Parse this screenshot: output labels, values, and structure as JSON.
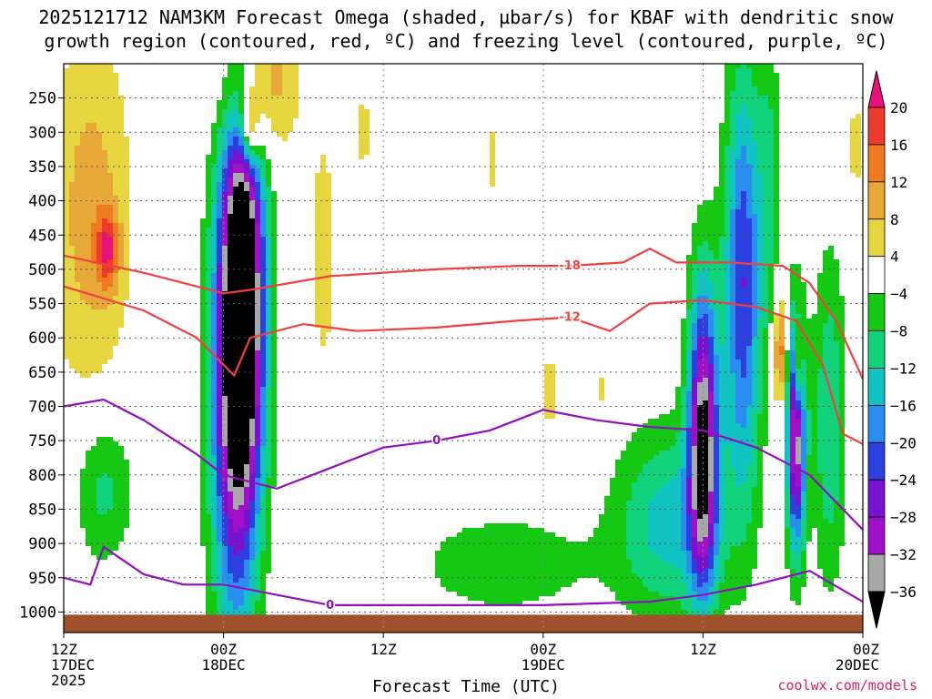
{
  "title_line1": "2025121712 NAM3KM Forecast Omega (shaded, µbar/s) for KBAF with dendritic snow",
  "title_line2": "growth region (contoured, red, ºC) and freezing level (contoured, purple, ºC)",
  "credit": "coolwx.com/models",
  "chart_data": {
    "type": "heatmap",
    "title": "2025121712 NAM3KM Forecast Omega (shaded, µbar/s) for KBAF with dendritic snow growth region (contoured, red, ºC) and freezing level (contoured, purple, ºC)",
    "xlabel": "Forecast Time (UTC)",
    "ylabel": "",
    "x_range_hours": [
      0,
      60
    ],
    "x_ticks": [
      {
        "hour": 0,
        "lines": [
          "12Z",
          "17DEC",
          "2025"
        ]
      },
      {
        "hour": 12,
        "lines": [
          "00Z",
          "18DEC"
        ]
      },
      {
        "hour": 24,
        "lines": [
          "12Z"
        ]
      },
      {
        "hour": 36,
        "lines": [
          "00Z",
          "19DEC"
        ]
      },
      {
        "hour": 48,
        "lines": [
          "12Z"
        ]
      },
      {
        "hour": 60,
        "lines": [
          "00Z",
          "20DEC"
        ]
      }
    ],
    "y_ticks_hpa": [
      250,
      300,
      350,
      400,
      450,
      500,
      550,
      600,
      650,
      700,
      750,
      800,
      850,
      900,
      950,
      1000
    ],
    "y_range_hpa": [
      200,
      1030
    ],
    "grid": true,
    "colorbar": {
      "labels": [
        "20",
        "16",
        "12",
        "8",
        "4",
        "−4",
        "−8",
        "−12",
        "−16",
        "−20",
        "−24",
        "−28",
        "−32",
        "−36"
      ],
      "colors": [
        "#e8127a",
        "#ee3a2a",
        "#f07a20",
        "#e8a838",
        "#e8d640",
        "#ffffff",
        "#14c814",
        "#10d27a",
        "#10c2c2",
        "#2a8ef0",
        "#2c40e0",
        "#7a10d0",
        "#a010c8",
        "#a8a8a8",
        "#000000"
      ]
    },
    "omega_cells": [
      {
        "hour": 2,
        "hpa": 420,
        "value": 10,
        "sx": 2.2,
        "sy": 200
      },
      {
        "hour": 3.3,
        "hpa": 470,
        "value": 14,
        "sx": 0.6,
        "sy": 40
      },
      {
        "hour": 14.5,
        "hpa": 230,
        "value": 14,
        "sx": 2,
        "sy": 80
      },
      {
        "hour": 14,
        "hpa": 290,
        "value": 18,
        "sx": 0.5,
        "sy": 40
      },
      {
        "hour": 19.5,
        "hpa": 480,
        "value": 6,
        "sx": 0.8,
        "sy": 150
      },
      {
        "hour": 22.5,
        "hpa": 300,
        "value": 5,
        "sx": 0.6,
        "sy": 60
      },
      {
        "hour": 32.2,
        "hpa": 340,
        "value": 5,
        "sx": 0.5,
        "sy": 60
      },
      {
        "hour": 36.5,
        "hpa": 680,
        "value": 6,
        "sx": 0.6,
        "sy": 50
      },
      {
        "hour": 40.5,
        "hpa": 680,
        "value": 5,
        "sx": 0.5,
        "sy": 40
      },
      {
        "hour": 53.8,
        "hpa": 620,
        "value": 16,
        "sx": 0.35,
        "sy": 60
      },
      {
        "hour": 55.2,
        "hpa": 650,
        "value": 18,
        "sx": 0.25,
        "sy": 50
      },
      {
        "hour": 59.5,
        "hpa": 320,
        "value": 6,
        "sx": 0.5,
        "sy": 60
      },
      {
        "hour": 13.5,
        "hpa": 520,
        "value": -36,
        "sx": 1.2,
        "sy": 220
      },
      {
        "hour": 12.8,
        "hpa": 700,
        "value": -26,
        "sx": 1.3,
        "sy": 250
      },
      {
        "hour": 48,
        "hpa": 740,
        "value": -36,
        "sx": 0.8,
        "sy": 160
      },
      {
        "hour": 51,
        "hpa": 520,
        "value": -24,
        "sx": 1.0,
        "sy": 220
      },
      {
        "hour": 55,
        "hpa": 740,
        "value": -36,
        "sx": 0.5,
        "sy": 120
      },
      {
        "hour": 45.5,
        "hpa": 870,
        "value": -14,
        "sx": 3,
        "sy": 100
      },
      {
        "hour": 33,
        "hpa": 930,
        "value": -8,
        "sx": 4.5,
        "sy": 50
      },
      {
        "hour": 3,
        "hpa": 820,
        "value": -10,
        "sx": 1.6,
        "sy": 80
      },
      {
        "hour": 57.5,
        "hpa": 720,
        "value": -12,
        "sx": 0.9,
        "sy": 170
      },
      {
        "hour": 53,
        "hpa": 360,
        "value": -8,
        "sx": 0.6,
        "sy": 160
      }
    ],
    "contours": [
      {
        "label": "-18",
        "color": "#f04040",
        "hours": [
          0,
          6,
          10,
          12,
          14,
          20,
          24,
          28,
          34,
          38,
          42,
          44,
          46,
          50,
          54,
          56,
          58,
          60
        ],
        "values": [
          480,
          505,
          525,
          535,
          530,
          510,
          505,
          500,
          495,
          495,
          490,
          470,
          490,
          490,
          495,
          520,
          575,
          660
        ]
      },
      {
        "label": "-12",
        "color": "#f04040",
        "hours": [
          0,
          6,
          10,
          12.8,
          14,
          18,
          22,
          28,
          34,
          38,
          41,
          44,
          48,
          52,
          55,
          57,
          58.5,
          60
        ],
        "values": [
          525,
          560,
          600,
          655,
          600,
          580,
          590,
          585,
          575,
          570,
          590,
          550,
          545,
          555,
          575,
          640,
          740,
          755
        ]
      },
      {
        "label": "0",
        "color": "#9010c0",
        "hours": [
          0,
          3,
          6,
          10,
          12,
          16,
          20,
          24,
          28,
          32,
          36,
          40,
          44,
          48,
          52,
          56,
          60
        ],
        "values": [
          700,
          690,
          720,
          770,
          800,
          820,
          790,
          760,
          750,
          735,
          705,
          720,
          730,
          735,
          760,
          800,
          880
        ]
      },
      {
        "label": "0",
        "color": "#9010c0",
        "hours": [
          0,
          2,
          3,
          6,
          9,
          12,
          16,
          20,
          28,
          36,
          44,
          48,
          52,
          56,
          60
        ],
        "values": [
          950,
          960,
          905,
          945,
          960,
          960,
          975,
          990,
          990,
          990,
          985,
          975,
          960,
          940,
          985
        ]
      }
    ]
  }
}
